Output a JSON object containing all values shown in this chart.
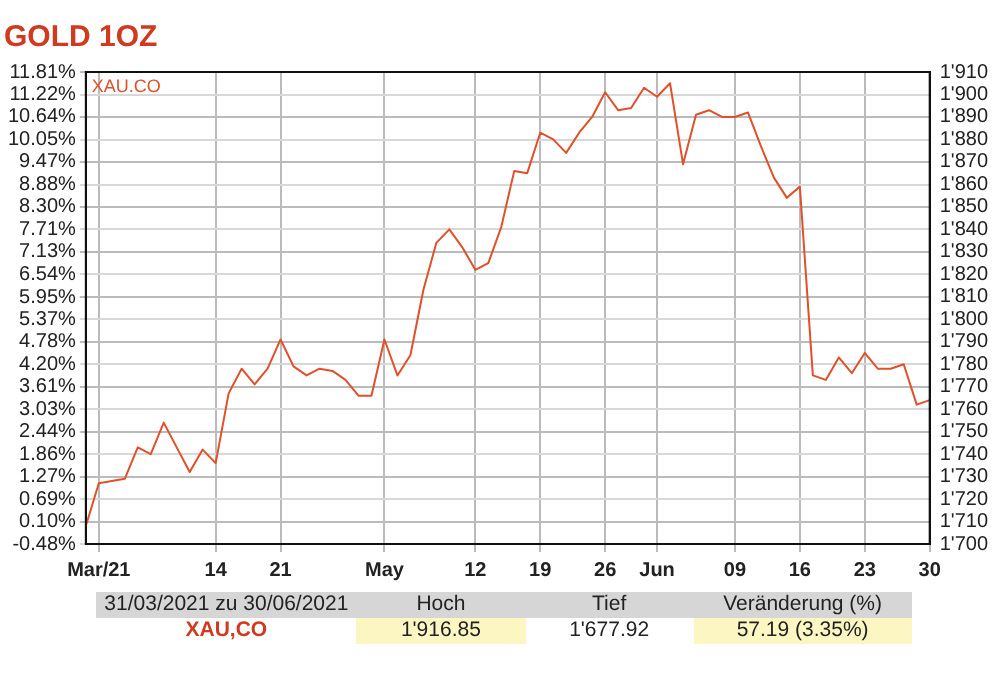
{
  "chart_data": {
    "type": "line",
    "title": "GOLD 1OZ",
    "categories": [
      null,
      "Mar/21",
      null,
      null,
      null,
      null,
      null,
      null,
      null,
      null,
      "14",
      null,
      null,
      null,
      null,
      "21",
      null,
      null,
      null,
      null,
      null,
      null,
      null,
      "May",
      null,
      null,
      null,
      null,
      null,
      null,
      "12",
      null,
      null,
      null,
      null,
      "19",
      null,
      null,
      null,
      null,
      "26",
      null,
      null,
      null,
      "Jun",
      null,
      null,
      null,
      null,
      null,
      "09",
      null,
      null,
      null,
      null,
      "16",
      null,
      null,
      null,
      null,
      "23",
      null,
      null,
      null,
      null,
      "30"
    ],
    "series": [
      {
        "name": "XAU.CO",
        "color": "#e0502a",
        "axis": "y2",
        "values": [
          1708,
          1727,
          1728,
          1729,
          1743,
          1740,
          1754,
          1743,
          1732,
          1742,
          1736,
          1767,
          1778,
          1771,
          1778,
          1791,
          1779,
          1775,
          1778,
          1777,
          1773,
          1766,
          1766,
          1791,
          1775,
          1784,
          1813,
          1834,
          1840,
          1832,
          1822,
          1825,
          1841,
          1866,
          1865,
          1883,
          1880,
          1874,
          1883,
          1890,
          1901,
          1893,
          1894,
          1903,
          1899,
          1905,
          1869,
          1891,
          1893,
          1890,
          1890,
          1892,
          1877,
          1863,
          1854,
          1859,
          1775,
          1773,
          1783,
          1776,
          1785,
          1778,
          1778,
          1780,
          1762,
          1764
        ]
      }
    ],
    "ylim": [
      -0.48,
      11.81
    ],
    "yticks": [
      {
        "value": -0.48,
        "label": "-0.48%"
      },
      {
        "value": 0.1,
        "label": "0.10%"
      },
      {
        "value": 0.69,
        "label": "0.69%"
      },
      {
        "value": 1.27,
        "label": "1.27%"
      },
      {
        "value": 1.86,
        "label": "1.86%"
      },
      {
        "value": 2.44,
        "label": "2.44%"
      },
      {
        "value": 3.03,
        "label": "3.03%"
      },
      {
        "value": 3.61,
        "label": "3.61%"
      },
      {
        "value": 4.2,
        "label": "4.20%"
      },
      {
        "value": 4.78,
        "label": "4.78%"
      },
      {
        "value": 5.37,
        "label": "5.37%"
      },
      {
        "value": 5.95,
        "label": "5.95%"
      },
      {
        "value": 6.54,
        "label": "6.54%"
      },
      {
        "value": 7.13,
        "label": "7.13%"
      },
      {
        "value": 7.71,
        "label": "7.71%"
      },
      {
        "value": 8.3,
        "label": "8.30%"
      },
      {
        "value": 8.88,
        "label": "8.88%"
      },
      {
        "value": 9.47,
        "label": "9.47%"
      },
      {
        "value": 10.05,
        "label": "10.05%"
      },
      {
        "value": 10.64,
        "label": "10.64%"
      },
      {
        "value": 11.22,
        "label": "11.22%"
      },
      {
        "value": 11.81,
        "label": "11.81%"
      }
    ],
    "y2lim": [
      1700,
      1910
    ],
    "y2ticks": [
      {
        "value": 1700,
        "label": "1'700"
      },
      {
        "value": 1710,
        "label": "1'710"
      },
      {
        "value": 1720,
        "label": "1'720"
      },
      {
        "value": 1730,
        "label": "1'730"
      },
      {
        "value": 1740,
        "label": "1'740"
      },
      {
        "value": 1750,
        "label": "1'750"
      },
      {
        "value": 1760,
        "label": "1'760"
      },
      {
        "value": 1770,
        "label": "1'770"
      },
      {
        "value": 1780,
        "label": "1'780"
      },
      {
        "value": 1790,
        "label": "1'790"
      },
      {
        "value": 1800,
        "label": "1'800"
      },
      {
        "value": 1810,
        "label": "1'810"
      },
      {
        "value": 1820,
        "label": "1'820"
      },
      {
        "value": 1830,
        "label": "1'830"
      },
      {
        "value": 1840,
        "label": "1'840"
      },
      {
        "value": 1850,
        "label": "1'850"
      },
      {
        "value": 1860,
        "label": "1'860"
      },
      {
        "value": 1870,
        "label": "1'870"
      },
      {
        "value": 1880,
        "label": "1'880"
      },
      {
        "value": 1890,
        "label": "1'890"
      },
      {
        "value": 1900,
        "label": "1'900"
      },
      {
        "value": 1910,
        "label": "1'910"
      }
    ],
    "grid": true,
    "legend": false,
    "marker": "none",
    "line_style": "solid",
    "annotations": [
      "31/03/2021 zu 30/06/2021",
      "Hoch",
      "Tief",
      "Veränderung (%)",
      "XAU,CO",
      "1'916.85",
      "1'677.92",
      "57.19 (3.35%)"
    ]
  }
}
